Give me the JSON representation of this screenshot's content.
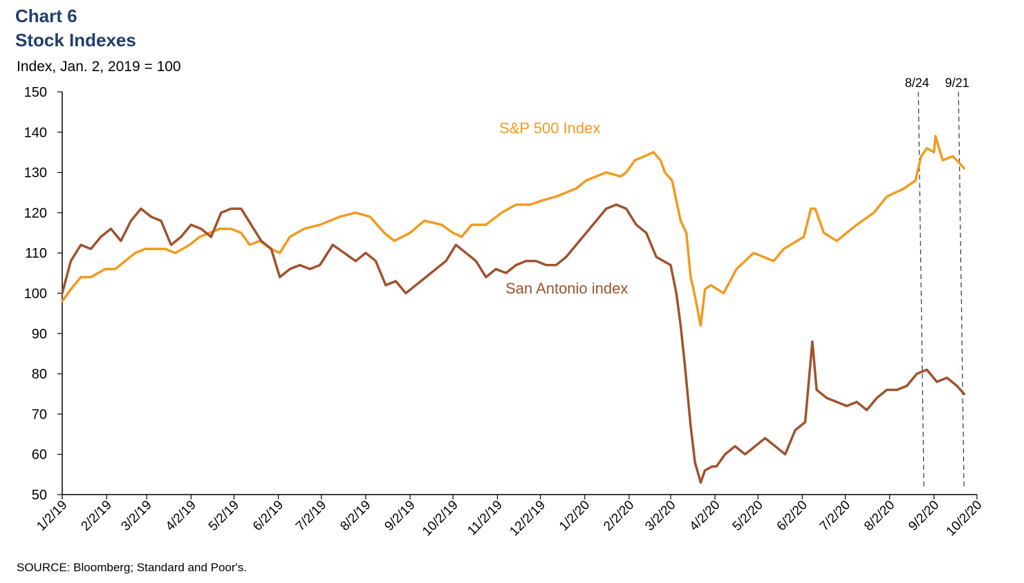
{
  "header": {
    "chart_label": "Chart 6",
    "title": "Stock Indexes",
    "unit_label": "Index, Jan. 2, 2019 = 100"
  },
  "footer": {
    "source": "SOURCE: Bloomberg; Standard and Poor's."
  },
  "colors": {
    "sp500": "#f29a1f",
    "san_antonio": "#a0522d",
    "axis": "#000000",
    "title": "#1f3f6e"
  },
  "chart_data": {
    "type": "line",
    "ylim": [
      50,
      150
    ],
    "y_ticks": [
      50,
      60,
      70,
      80,
      90,
      100,
      110,
      120,
      130,
      140,
      150
    ],
    "x_ticks": [
      "1/2/19",
      "2/2/19",
      "3/2/19",
      "4/2/19",
      "5/2/19",
      "6/2/19",
      "7/2/19",
      "8/2/19",
      "9/2/19",
      "10/2/19",
      "11/2/19",
      "12/2/19",
      "1/2/20",
      "2/2/20",
      "3/2/20",
      "4/2/20",
      "5/2/20",
      "6/2/20",
      "7/2/20",
      "8/2/20",
      "9/2/20",
      "10/2/20"
    ],
    "xlim": [
      "2019-01-02",
      "2020-10-02"
    ],
    "grid": false,
    "legend": "inline labels",
    "series": [
      {
        "name": "S&P 500 Index",
        "color": "#f29a1f",
        "x": [
          "2019-01-02",
          "2019-01-08",
          "2019-01-15",
          "2019-01-22",
          "2019-02-01",
          "2019-02-08",
          "2019-02-15",
          "2019-02-22",
          "2019-03-01",
          "2019-03-08",
          "2019-03-15",
          "2019-03-22",
          "2019-04-01",
          "2019-04-08",
          "2019-04-15",
          "2019-04-22",
          "2019-04-30",
          "2019-05-07",
          "2019-05-13",
          "2019-05-20",
          "2019-05-28",
          "2019-06-03",
          "2019-06-10",
          "2019-06-20",
          "2019-07-01",
          "2019-07-15",
          "2019-07-26",
          "2019-08-05",
          "2019-08-15",
          "2019-08-22",
          "2019-09-02",
          "2019-09-12",
          "2019-09-24",
          "2019-10-02",
          "2019-10-08",
          "2019-10-15",
          "2019-10-25",
          "2019-11-05",
          "2019-11-15",
          "2019-11-25",
          "2019-12-03",
          "2019-12-13",
          "2019-12-27",
          "2020-01-03",
          "2020-01-17",
          "2020-01-27",
          "2020-01-31",
          "2020-02-06",
          "2020-02-19",
          "2020-02-24",
          "2020-02-27",
          "2020-03-03",
          "2020-03-09",
          "2020-03-13",
          "2020-03-16",
          "2020-03-18",
          "2020-03-23",
          "2020-03-26",
          "2020-03-30",
          "2020-04-08",
          "2020-04-17",
          "2020-04-29",
          "2020-05-13",
          "2020-05-20",
          "2020-06-03",
          "2020-06-08",
          "2020-06-11",
          "2020-06-17",
          "2020-06-26",
          "2020-07-10",
          "2020-07-22",
          "2020-07-31",
          "2020-08-12",
          "2020-08-20",
          "2020-08-24",
          "2020-08-28",
          "2020-09-02",
          "2020-09-03",
          "2020-09-08",
          "2020-09-15",
          "2020-09-18",
          "2020-09-23"
        ],
        "values": [
          98,
          101,
          104,
          104,
          106,
          106,
          108,
          110,
          111,
          111,
          111,
          110,
          112,
          114,
          115,
          116,
          116,
          115,
          112,
          113,
          111,
          110,
          114,
          116,
          117,
          119,
          120,
          119,
          115,
          113,
          115,
          118,
          117,
          115,
          114,
          117,
          117,
          120,
          122,
          122,
          123,
          124,
          126,
          128,
          130,
          129,
          130,
          133,
          135,
          133,
          130,
          128,
          118,
          115,
          104,
          101,
          92,
          101,
          102,
          100,
          106,
          110,
          108,
          111,
          114,
          121,
          121,
          115,
          113,
          117,
          120,
          124,
          126,
          128,
          134,
          136,
          135,
          139,
          133,
          134,
          133,
          131
        ]
      },
      {
        "name": "San Antonio index",
        "color": "#a0522d",
        "x": [
          "2019-01-02",
          "2019-01-08",
          "2019-01-15",
          "2019-01-22",
          "2019-01-29",
          "2019-02-05",
          "2019-02-12",
          "2019-02-19",
          "2019-02-26",
          "2019-03-05",
          "2019-03-12",
          "2019-03-19",
          "2019-03-26",
          "2019-04-02",
          "2019-04-09",
          "2019-04-16",
          "2019-04-23",
          "2019-04-30",
          "2019-05-07",
          "2019-05-14",
          "2019-05-21",
          "2019-05-28",
          "2019-06-03",
          "2019-06-10",
          "2019-06-17",
          "2019-06-24",
          "2019-07-01",
          "2019-07-10",
          "2019-07-18",
          "2019-07-26",
          "2019-08-02",
          "2019-08-09",
          "2019-08-16",
          "2019-08-23",
          "2019-08-30",
          "2019-09-06",
          "2019-09-13",
          "2019-09-20",
          "2019-09-27",
          "2019-10-04",
          "2019-10-11",
          "2019-10-18",
          "2019-10-25",
          "2019-11-01",
          "2019-11-08",
          "2019-11-15",
          "2019-11-22",
          "2019-11-29",
          "2019-12-06",
          "2019-12-13",
          "2019-12-20",
          "2019-12-27",
          "2020-01-03",
          "2020-01-10",
          "2020-01-17",
          "2020-01-24",
          "2020-01-31",
          "2020-02-07",
          "2020-02-14",
          "2020-02-21",
          "2020-02-26",
          "2020-03-02",
          "2020-03-06",
          "2020-03-09",
          "2020-03-12",
          "2020-03-16",
          "2020-03-19",
          "2020-03-23",
          "2020-03-26",
          "2020-03-31",
          "2020-04-03",
          "2020-04-09",
          "2020-04-16",
          "2020-04-23",
          "2020-04-30",
          "2020-05-07",
          "2020-05-14",
          "2020-05-21",
          "2020-05-28",
          "2020-06-04",
          "2020-06-09",
          "2020-06-12",
          "2020-06-19",
          "2020-06-26",
          "2020-07-03",
          "2020-07-10",
          "2020-07-17",
          "2020-07-24",
          "2020-07-31",
          "2020-08-07",
          "2020-08-14",
          "2020-08-21",
          "2020-08-28",
          "2020-09-04",
          "2020-09-11",
          "2020-09-18",
          "2020-09-23"
        ],
        "values": [
          100,
          108,
          112,
          111,
          114,
          116,
          113,
          118,
          121,
          119,
          118,
          112,
          114,
          117,
          116,
          114,
          120,
          121,
          121,
          117,
          113,
          111,
          104,
          106,
          107,
          106,
          107,
          112,
          110,
          108,
          110,
          108,
          102,
          103,
          100,
          102,
          104,
          106,
          108,
          112,
          110,
          108,
          104,
          106,
          105,
          107,
          108,
          108,
          107,
          107,
          109,
          112,
          115,
          118,
          121,
          122,
          121,
          117,
          115,
          109,
          108,
          107,
          100,
          92,
          82,
          67,
          58,
          53,
          56,
          57,
          57,
          60,
          62,
          60,
          62,
          64,
          62,
          60,
          66,
          68,
          88,
          76,
          74,
          73,
          72,
          73,
          71,
          74,
          76,
          76,
          77,
          80,
          81,
          78,
          79,
          77,
          75
        ]
      }
    ],
    "annotations": [
      {
        "label": "8/24",
        "x": "2020-08-24"
      },
      {
        "label": "9/21",
        "x": "2020-09-21"
      }
    ]
  }
}
